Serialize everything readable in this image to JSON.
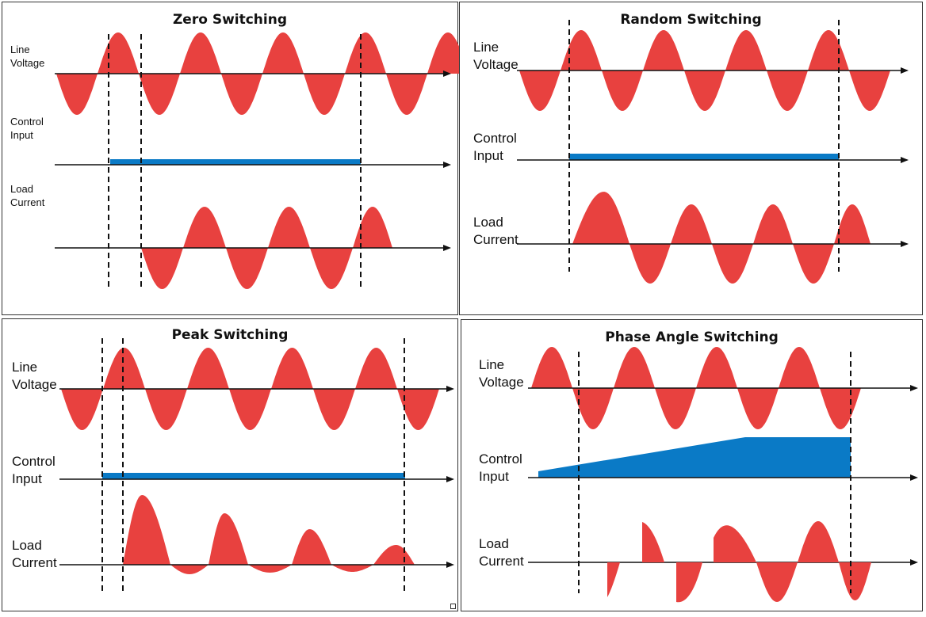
{
  "colors": {
    "wave": "#e8413f",
    "control": "#0a7ac6",
    "axis": "#111111",
    "border": "#333333"
  },
  "panels": {
    "zero": {
      "title": "Zero Switching",
      "line_voltage": [
        "Line",
        "Voltage"
      ],
      "control_input": [
        "Control",
        "Input"
      ],
      "load_current": [
        "Load",
        "Current"
      ]
    },
    "random": {
      "title": "Random Switching",
      "line_voltage": [
        "Line",
        "Voltage"
      ],
      "control_input": [
        "Control",
        "Input"
      ],
      "load_current": [
        "Load",
        "Current"
      ]
    },
    "peak": {
      "title": "Peak Switching",
      "line_voltage": [
        "Line",
        "Voltage"
      ],
      "control_input": [
        "Control",
        "Input"
      ],
      "load_current": [
        "Load",
        "Current"
      ]
    },
    "phase": {
      "title": "Phase Angle Switching",
      "line_voltage": [
        "Line",
        "Voltage"
      ],
      "control_input": [
        "Control",
        "Input"
      ],
      "load_current": [
        "Load",
        "Current"
      ]
    }
  }
}
